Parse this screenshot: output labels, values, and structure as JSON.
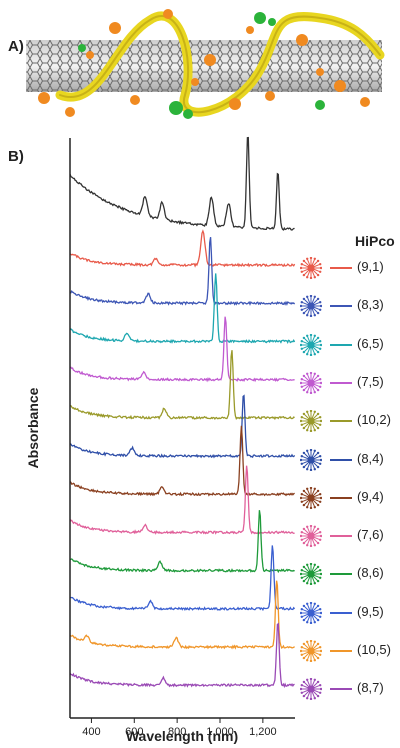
{
  "panel_a": {
    "label": "A)"
  },
  "panel_b": {
    "label": "B)"
  },
  "legend_title": "HiPco",
  "chart_data": {
    "type": "line",
    "xlabel": "Wavelength (nm)",
    "ylabel": "Absorbance",
    "xlim": [
      300,
      1350
    ],
    "xticks": [
      400,
      600,
      800,
      1000,
      1200
    ],
    "xtick_labels": [
      "400",
      "600",
      "800",
      "1,000",
      "1,200"
    ],
    "series": [
      {
        "name": "",
        "color": "#333333",
        "peaks": [],
        "peaks_nm": [
          [
            650,
            0.2
          ],
          [
            730,
            0.18
          ],
          [
            960,
            0.3
          ],
          [
            1040,
            0.25
          ],
          [
            1130,
            1.0
          ],
          [
            1270,
            0.6
          ]
        ]
      },
      {
        "name": "(9,1)",
        "color": "#e85a4a",
        "peaks_nm": [
          [
            700,
            0.08
          ],
          [
            920,
            0.45
          ]
        ]
      },
      {
        "name": "(8,3)",
        "color": "#3d56b5",
        "peaks_nm": [
          [
            665,
            0.12
          ],
          [
            955,
            0.9
          ]
        ]
      },
      {
        "name": "(6,5)",
        "color": "#1ea7b0",
        "peaks_nm": [
          [
            565,
            0.1
          ],
          [
            980,
            0.9
          ]
        ]
      },
      {
        "name": "(7,5)",
        "color": "#c05ad0",
        "peaks_nm": [
          [
            645,
            0.1
          ],
          [
            1025,
            0.85
          ]
        ]
      },
      {
        "name": "(10,2)",
        "color": "#9a9a2a",
        "peaks_nm": [
          [
            740,
            0.12
          ],
          [
            1055,
            0.9
          ]
        ]
      },
      {
        "name": "(8,4)",
        "color": "#2f4fa8",
        "peaks_nm": [
          [
            590,
            0.1
          ],
          [
            1110,
            0.85
          ]
        ]
      },
      {
        "name": "(9,4)",
        "color": "#8a4020",
        "peaks_nm": [
          [
            730,
            0.1
          ],
          [
            1100,
            0.9
          ]
        ]
      },
      {
        "name": "(7,6)",
        "color": "#e0609a",
        "peaks_nm": [
          [
            650,
            0.1
          ],
          [
            1125,
            0.9
          ]
        ]
      },
      {
        "name": "(8,6)",
        "color": "#1e9a3a",
        "peaks_nm": [
          [
            720,
            0.12
          ],
          [
            1185,
            0.8
          ]
        ]
      },
      {
        "name": "(9,5)",
        "color": "#3a5fd0",
        "peaks_nm": [
          [
            675,
            0.1
          ],
          [
            1245,
            0.85
          ]
        ]
      },
      {
        "name": "(10,5)",
        "color": "#f0962a",
        "peaks_nm": [
          [
            380,
            0.08
          ],
          [
            795,
            0.12
          ],
          [
            1265,
            0.9
          ]
        ]
      },
      {
        "name": "(8,7)",
        "color": "#9a4ab5",
        "peaks_nm": [
          [
            735,
            0.1
          ],
          [
            1270,
            0.85
          ]
        ]
      }
    ]
  }
}
